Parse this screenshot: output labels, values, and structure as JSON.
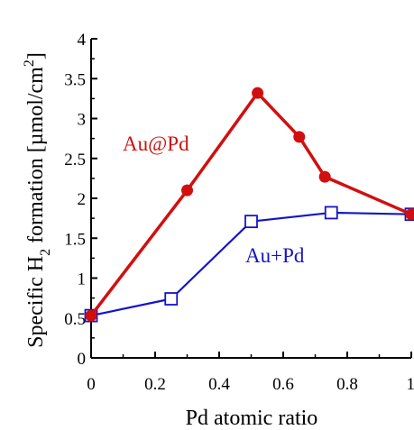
{
  "chart_data": {
    "type": "line",
    "xlabel": "Pd atomic ratio",
    "ylabel": {
      "prefix": "Specific H",
      "subscript": "2",
      "middle": " formation [µmol/cm",
      "superscript": "2",
      "suffix": "]"
    },
    "xlim": [
      0,
      1
    ],
    "ylim": [
      0,
      4
    ],
    "x_ticks": [
      "0",
      "0.2",
      "0.4",
      "0.6",
      "0.8",
      "1"
    ],
    "y_ticks": [
      "0",
      "0.5",
      "1",
      "1.5",
      "2",
      "2.5",
      "3",
      "3.5",
      "4"
    ],
    "grid": false,
    "series": [
      {
        "name": "Au@Pd",
        "color": "#d10f0f",
        "marker": "filled-circle",
        "x": [
          0,
          0.3,
          0.52,
          0.65,
          0.73,
          1.0
        ],
        "y": [
          0.53,
          2.1,
          3.32,
          2.77,
          2.27,
          1.8
        ]
      },
      {
        "name": "Au+Pd",
        "color": "#1414c8",
        "marker": "open-square",
        "x": [
          0,
          0.25,
          0.5,
          0.75,
          1.0
        ],
        "y": [
          0.53,
          0.74,
          1.71,
          1.82,
          1.8
        ]
      }
    ]
  }
}
